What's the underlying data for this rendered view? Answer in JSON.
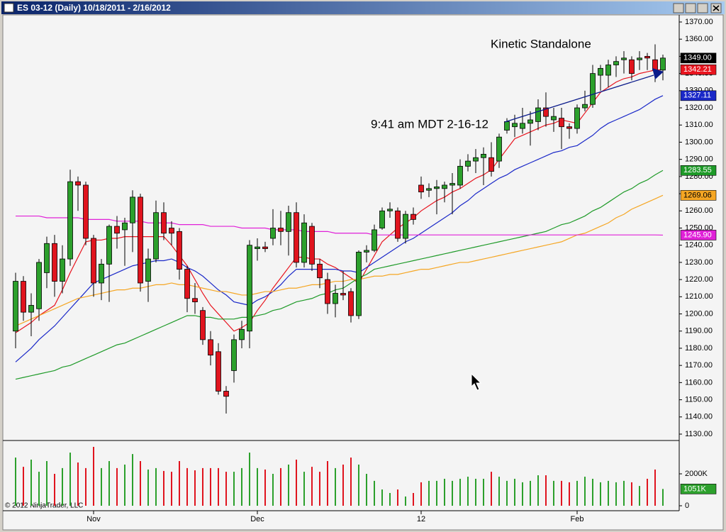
{
  "chart_data": {
    "type": "candlestick",
    "title": "ES 03-12 (Daily)  10/18/2011 - 2/16/2012",
    "annotations": {
      "watermark": "Kinetic Standalone",
      "time_note": "9:41 am MDT 2-16-12",
      "copyright": "© 2012 NinjaTrader, LLC"
    },
    "categories": [
      null,
      null,
      null,
      null,
      null,
      null,
      null,
      null,
      null,
      null,
      "Nov",
      null,
      null,
      null,
      null,
      null,
      null,
      null,
      null,
      null,
      null,
      null,
      null,
      null,
      null,
      null,
      null,
      null,
      null,
      null,
      null,
      "Dec",
      null,
      null,
      null,
      null,
      null,
      null,
      null,
      null,
      null,
      null,
      null,
      null,
      null,
      null,
      null,
      null,
      null,
      null,
      null,
      null,
      "12",
      null,
      null,
      null,
      null,
      null,
      null,
      null,
      null,
      null,
      null,
      null,
      null,
      null,
      null,
      null,
      null,
      null,
      null,
      null,
      "Feb",
      null,
      null,
      null,
      null,
      null,
      null,
      null,
      null,
      null,
      null,
      null
    ],
    "open": [
      1190,
      1219,
      1201,
      1203,
      1224,
      1241,
      1219,
      1232,
      1277,
      1275,
      1244,
      1218,
      1229,
      1251,
      1249,
      1253,
      1268,
      1219,
      1232,
      1259,
      1250,
      1248,
      1226,
      1209,
      1202,
      1185,
      1178,
      1155,
      1167,
      1185,
      1190,
      1238,
      1239,
      1244,
      1250,
      1248,
      1259,
      1230,
      1251,
      1229,
      1220,
      1206,
      1212,
      1213,
      1199,
      1236,
      1237,
      1250,
      1260,
      1260,
      1244,
      1258,
      1275,
      1272,
      1273,
      1273,
      1275,
      1275,
      1286,
      1289,
      1291,
      1291,
      1289,
      1307,
      1309,
      1308,
      1311,
      1312,
      1320,
      1313,
      1314,
      1309,
      1308,
      1320,
      1322,
      1339,
      1339,
      1345,
      1348,
      1348,
      1348,
      1350,
      1348,
      1342
    ],
    "high": [
      1224,
      1222,
      1212,
      1232,
      1245,
      1246,
      1240,
      1284,
      1280,
      1277,
      1246,
      1232,
      1252,
      1257,
      1256,
      1272,
      1270,
      1238,
      1266,
      1265,
      1254,
      1250,
      1228,
      1218,
      1204,
      1190,
      1183,
      1158,
      1188,
      1196,
      1243,
      1244,
      1242,
      1261,
      1260,
      1263,
      1265,
      1258,
      1253,
      1232,
      1224,
      1217,
      1225,
      1215,
      1237,
      1240,
      1252,
      1262,
      1265,
      1262,
      1260,
      1262,
      1280,
      1276,
      1278,
      1277,
      1282,
      1290,
      1293,
      1296,
      1297,
      1300,
      1305,
      1314,
      1316,
      1320,
      1318,
      1325,
      1329,
      1320,
      1320,
      1311,
      1322,
      1330,
      1345,
      1345,
      1348,
      1350,
      1353,
      1350,
      1353,
      1352,
      1357,
      1351
    ],
    "low": [
      1180,
      1196,
      1187,
      1196,
      1215,
      1210,
      1212,
      1228,
      1260,
      1240,
      1210,
      1208,
      1207,
      1238,
      1228,
      1236,
      1213,
      1207,
      1230,
      1243,
      1240,
      1220,
      1201,
      1200,
      1182,
      1170,
      1153,
      1142,
      1160,
      1180,
      1180,
      1231,
      1236,
      1240,
      1240,
      1234,
      1227,
      1227,
      1225,
      1215,
      1200,
      1198,
      1208,
      1195,
      1197,
      1230,
      1236,
      1249,
      1256,
      1242,
      1241,
      1252,
      1267,
      1268,
      1258,
      1265,
      1258,
      1273,
      1283,
      1282,
      1275,
      1280,
      1285,
      1305,
      1303,
      1305,
      1298,
      1307,
      1309,
      1306,
      1296,
      1302,
      1305,
      1318,
      1320,
      1330,
      1332,
      1338,
      1340,
      1336,
      1342,
      1342,
      1335,
      1336
    ],
    "close": [
      1219,
      1201,
      1205,
      1230,
      1241,
      1219,
      1232,
      1277,
      1275,
      1244,
      1218,
      1229,
      1251,
      1247,
      1253,
      1268,
      1218,
      1232,
      1259,
      1247,
      1247,
      1226,
      1209,
      1207,
      1185,
      1176,
      1155,
      1152,
      1185,
      1191,
      1240,
      1239,
      1238,
      1250,
      1248,
      1259,
      1230,
      1253,
      1229,
      1221,
      1206,
      1212,
      1211,
      1199,
      1236,
      1237,
      1249,
      1260,
      1261,
      1244,
      1258,
      1255,
      1271,
      1273,
      1274,
      1275,
      1276,
      1286,
      1289,
      1291,
      1293,
      1283,
      1303,
      1312,
      1311,
      1311,
      1313,
      1320,
      1315,
      1315,
      1309,
      1308,
      1320,
      1322,
      1340,
      1343,
      1345,
      1347,
      1349,
      1340,
      1349,
      1349,
      1342,
      1349
    ],
    "up_color": "#2ca02c",
    "down_color": "#e0141e",
    "close_label": "1349.00",
    "ylim": [
      1130,
      1370
    ],
    "yticks": [
      {
        "value": 1130,
        "label": "1130.00"
      },
      {
        "value": 1140,
        "label": "1140.00"
      },
      {
        "value": 1150,
        "label": "1150.00"
      },
      {
        "value": 1160,
        "label": "1160.00"
      },
      {
        "value": 1170,
        "label": "1170.00"
      },
      {
        "value": 1180,
        "label": "1180.00"
      },
      {
        "value": 1190,
        "label": "1190.00"
      },
      {
        "value": 1200,
        "label": "1200.00"
      },
      {
        "value": 1210,
        "label": "1210.00"
      },
      {
        "value": 1220,
        "label": "1220.00"
      },
      {
        "value": 1230,
        "label": "1230.00"
      },
      {
        "value": 1240,
        "label": "1240.00"
      },
      {
        "value": 1250,
        "label": "1250.00"
      },
      {
        "value": 1260,
        "label": "1260.00"
      },
      {
        "value": 1270,
        "label": "1270.00"
      },
      {
        "value": 1280,
        "label": "1280.00"
      },
      {
        "value": 1290,
        "label": "1290.00"
      },
      {
        "value": 1300,
        "label": "1300.00"
      },
      {
        "value": 1310,
        "label": "1310.00"
      },
      {
        "value": 1320,
        "label": "1320.00"
      },
      {
        "value": 1330,
        "label": "1330.00"
      },
      {
        "value": 1340,
        "label": "1340.00"
      },
      {
        "value": 1350,
        "label": "1350.00"
      },
      {
        "value": 1360,
        "label": "1360.00"
      },
      {
        "value": 1370,
        "label": "1370.00"
      }
    ],
    "moving_averages": [
      {
        "color": "#e8141e",
        "end_label": "1342.21",
        "values": [
          1189,
          1192,
          1195,
          1199,
          1202,
          1205,
          1214,
          1224,
          1233,
          1242,
          1243,
          1243,
          1244,
          1244,
          1245,
          1245,
          1245,
          1245,
          1245,
          1245,
          1240,
          1234,
          1228,
          1220,
          1212,
          1205,
          1200,
          1195,
          1190,
          1192,
          1195,
          1202,
          1208,
          1215,
          1221,
          1227,
          1233,
          1233,
          1232,
          1232,
          1229,
          1227,
          1224,
          1221,
          1218,
          1226,
          1234,
          1242,
          1246,
          1250,
          1253,
          1256,
          1260,
          1263,
          1266,
          1268,
          1271,
          1273,
          1276,
          1279,
          1281,
          1284,
          1290,
          1296,
          1302,
          1304,
          1306,
          1308,
          1310,
          1311,
          1313,
          1312,
          1311,
          1317,
          1323,
          1329,
          1332,
          1335,
          1337,
          1338,
          1340,
          1341,
          1342,
          1342.21
        ]
      },
      {
        "color": "#1a28c8",
        "end_label": "1327.11",
        "values": [
          1172,
          1176,
          1180,
          1185,
          1189,
          1193,
          1198,
          1203,
          1208,
          1213,
          1218,
          1220,
          1222,
          1224,
          1226,
          1228,
          1229,
          1230,
          1231,
          1231,
          1232,
          1230,
          1227,
          1225,
          1222,
          1218,
          1214,
          1211,
          1207,
          1206,
          1205,
          1208,
          1210,
          1213,
          1217,
          1222,
          1226,
          1226,
          1226,
          1226,
          1226,
          1226,
          1225,
          1225,
          1224,
          1227,
          1230,
          1233,
          1236,
          1239,
          1242,
          1244,
          1247,
          1250,
          1253,
          1256,
          1259,
          1263,
          1266,
          1270,
          1273,
          1276,
          1279,
          1281,
          1284,
          1286,
          1288,
          1290,
          1292,
          1294,
          1295,
          1297,
          1298,
          1301,
          1304,
          1308,
          1311,
          1313,
          1315,
          1317,
          1319,
          1322,
          1325,
          1327.11
        ]
      },
      {
        "color": "#1e9a28",
        "end_label": "1283.55",
        "values": [
          1162,
          1163,
          1164,
          1165,
          1166,
          1167,
          1169,
          1170,
          1172,
          1174,
          1176,
          1178,
          1180,
          1182,
          1183,
          1185,
          1187,
          1189,
          1191,
          1193,
          1195,
          1197,
          1199,
          1199,
          1198,
          1198,
          1197,
          1197,
          1197,
          1198,
          1198,
          1199,
          1200,
          1202,
          1203,
          1205,
          1207,
          1208,
          1209,
          1211,
          1212,
          1214,
          1215,
          1218,
          1221,
          1223,
          1226,
          1227,
          1228,
          1229,
          1230,
          1231,
          1232,
          1233,
          1234,
          1235,
          1236,
          1237,
          1238,
          1239,
          1240,
          1241,
          1242,
          1243,
          1244,
          1245,
          1246,
          1247,
          1248,
          1250,
          1252,
          1253,
          1255,
          1257,
          1260,
          1262,
          1265,
          1268,
          1271,
          1273,
          1276,
          1278,
          1281,
          1283.55
        ]
      },
      {
        "color": "#f5a623",
        "end_label": "1269.06",
        "values": [
          1193,
          1195,
          1197,
          1199,
          1201,
          1203,
          1205,
          1207,
          1209,
          1210,
          1211,
          1212,
          1213,
          1214,
          1214,
          1215,
          1215,
          1216,
          1217,
          1217,
          1218,
          1217,
          1217,
          1216,
          1215,
          1214,
          1213,
          1213,
          1212,
          1211,
          1211,
          1212,
          1213,
          1213,
          1214,
          1215,
          1215,
          1216,
          1217,
          1217,
          1218,
          1219,
          1219,
          1220,
          1220,
          1221,
          1222,
          1222,
          1223,
          1223,
          1224,
          1225,
          1226,
          1226,
          1227,
          1228,
          1229,
          1230,
          1230,
          1231,
          1232,
          1233,
          1234,
          1235,
          1236,
          1237,
          1238,
          1239,
          1240,
          1241,
          1242,
          1244,
          1246,
          1247,
          1249,
          1251,
          1253,
          1256,
          1258,
          1261,
          1263,
          1265,
          1267,
          1269.06
        ]
      },
      {
        "color": "#e020d8",
        "end_label": "1245.90",
        "values": [
          1257,
          1257,
          1257,
          1257,
          1256,
          1256,
          1256,
          1256,
          1256,
          1255,
          1255,
          1255,
          1255,
          1254,
          1254,
          1254,
          1254,
          1253,
          1253,
          1253,
          1253,
          1252,
          1252,
          1252,
          1252,
          1251,
          1251,
          1251,
          1251,
          1250,
          1250,
          1250,
          1250,
          1249,
          1249,
          1249,
          1249,
          1248,
          1248,
          1248,
          1248,
          1247,
          1247,
          1247,
          1247,
          1247,
          1246,
          1246,
          1246,
          1246,
          1246,
          1246,
          1246,
          1246,
          1246,
          1246,
          1246,
          1246,
          1246,
          1246,
          1246,
          1246,
          1246,
          1246,
          1246,
          1246,
          1246,
          1246,
          1246,
          1246,
          1246,
          1246,
          1246,
          1246,
          1246,
          1246,
          1246,
          1246,
          1246,
          1246,
          1246,
          1246,
          1246,
          1245.9
        ]
      }
    ],
    "volume": {
      "values": [
        3020,
        2440,
        2890,
        2130,
        2800,
        2000,
        2360,
        3330,
        2710,
        2360,
        3690,
        2360,
        2800,
        2360,
        2580,
        3240,
        2800,
        2270,
        2360,
        2180,
        2130,
        2800,
        2360,
        2220,
        2360,
        2360,
        2360,
        2130,
        2130,
        2360,
        3330,
        2360,
        2270,
        2000,
        2360,
        2580,
        2890,
        2130,
        2440,
        2130,
        2800,
        2360,
        2580,
        3020,
        2580,
        2000,
        1560,
        1020,
        800,
        1020,
        580,
        800,
        1470,
        1560,
        1560,
        1690,
        1560,
        1690,
        1820,
        1690,
        1690,
        2130,
        1820,
        1560,
        1690,
        1470,
        1560,
        1910,
        1910,
        1560,
        1560,
        1470,
        1560,
        1820,
        1690,
        1470,
        1560,
        1470,
        1560,
        1470,
        1240,
        1690,
        2270,
        1051
      ],
      "ylim": [
        0,
        4000
      ],
      "yticks": [
        {
          "value": 2000,
          "label": "2000K"
        },
        0
      ],
      "last_label": "1051K"
    }
  }
}
